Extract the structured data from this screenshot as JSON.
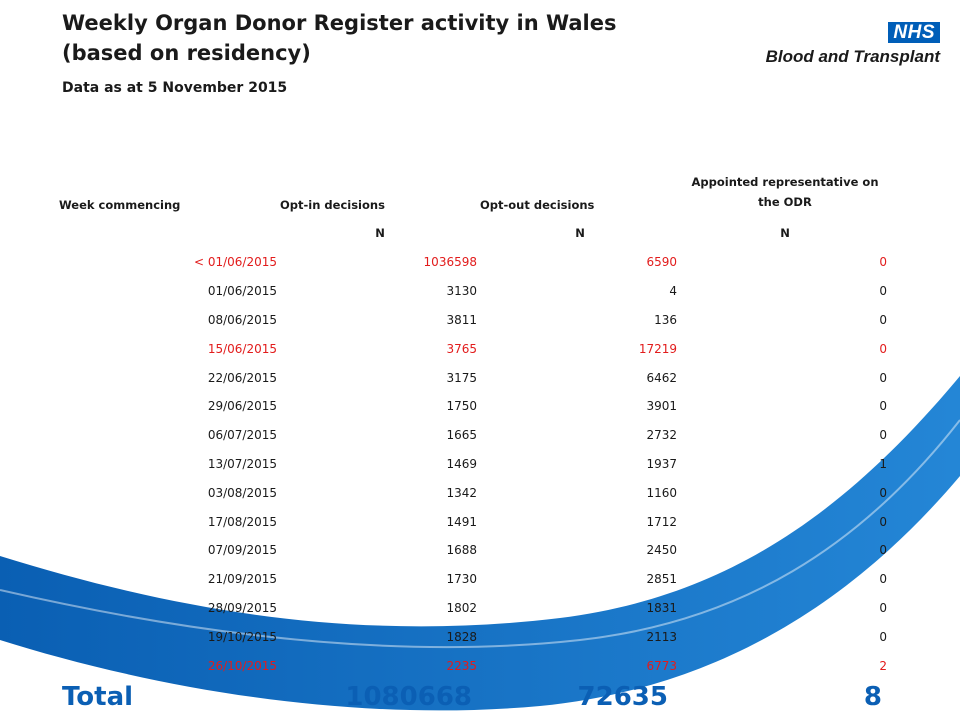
{
  "title_line1": "Weekly Organ Donor Register activity in Wales",
  "title_line2": "(based on residency)",
  "subtitle": "Data  as at 5 November 2015",
  "logo": {
    "nhs": "NHS",
    "org": "Blood and Transplant"
  },
  "colors": {
    "accent_blue": "#0b5fb4",
    "highlight_red": "#e21c1c",
    "nhs_blue": "#005eb8"
  },
  "table": {
    "headers": [
      "Week commencing",
      "Opt-in decisions",
      "Opt-out decisions",
      "Appointed representative on the ODR"
    ],
    "units": [
      "",
      "N",
      "N",
      "N"
    ],
    "rows": [
      {
        "week": "< 01/06/2015",
        "optin": "1036598",
        "optout": "6590",
        "appointed": "0",
        "highlight": true
      },
      {
        "week": "01/06/2015",
        "optin": "3130",
        "optout": "4",
        "appointed": "0",
        "highlight": false
      },
      {
        "week": "08/06/2015",
        "optin": "3811",
        "optout": "136",
        "appointed": "0",
        "highlight": false
      },
      {
        "week": "15/06/2015",
        "optin": "3765",
        "optout": "17219",
        "appointed": "0",
        "highlight": true
      },
      {
        "week": "22/06/2015",
        "optin": "3175",
        "optout": "6462",
        "appointed": "0",
        "highlight": false
      },
      {
        "week": "29/06/2015",
        "optin": "1750",
        "optout": "3901",
        "appointed": "0",
        "highlight": false
      },
      {
        "week": "06/07/2015",
        "optin": "1665",
        "optout": "2732",
        "appointed": "0",
        "highlight": false
      },
      {
        "week": "13/07/2015",
        "optin": "1469",
        "optout": "1937",
        "appointed": "1",
        "highlight": false
      },
      {
        "week": "03/08/2015",
        "optin": "1342",
        "optout": "1160",
        "appointed": "0",
        "highlight": false
      },
      {
        "week": "17/08/2015",
        "optin": "1491",
        "optout": "1712",
        "appointed": "0",
        "highlight": false
      },
      {
        "week": "07/09/2015",
        "optin": "1688",
        "optout": "2450",
        "appointed": "0",
        "highlight": false
      },
      {
        "week": "21/09/2015",
        "optin": "1730",
        "optout": "2851",
        "appointed": "0",
        "highlight": false
      },
      {
        "week": "28/09/2015",
        "optin": "1802",
        "optout": "1831",
        "appointed": "0",
        "highlight": false
      },
      {
        "week": "19/10/2015",
        "optin": "1828",
        "optout": "2113",
        "appointed": "0",
        "highlight": false
      },
      {
        "week": "26/10/2015",
        "optin": "2235",
        "optout": "6773",
        "appointed": "2",
        "highlight": true
      }
    ]
  },
  "total": {
    "label": "Total",
    "optin": "1080668",
    "optout": "72635",
    "appointed": "8"
  }
}
